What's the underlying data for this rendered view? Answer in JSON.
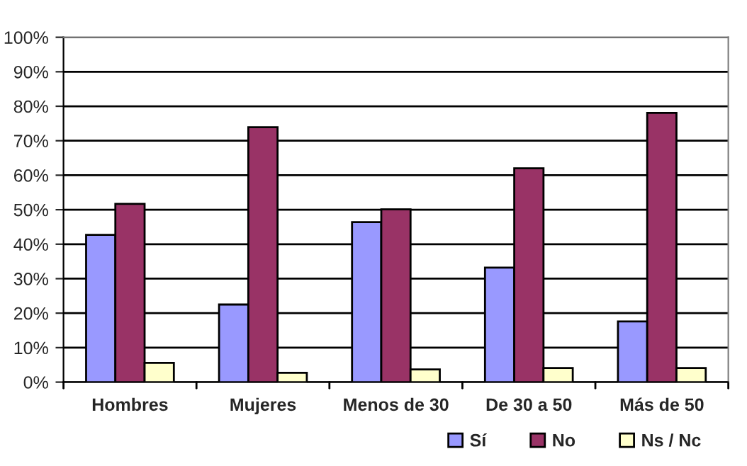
{
  "chart_data": {
    "type": "bar",
    "categories": [
      "Hombres",
      "Mujeres",
      "Menos de 30",
      "De 30 a 50",
      "Más de 50"
    ],
    "series": [
      {
        "name": "Sí",
        "color": "#9999ff",
        "values": [
          42.7,
          22.5,
          46.4,
          33.2,
          17.6
        ]
      },
      {
        "name": "No",
        "color": "#993366",
        "values": [
          51.7,
          73.9,
          50.1,
          62.0,
          78.1
        ]
      },
      {
        "name": "Ns / Nc",
        "color": "#ffffcc",
        "values": [
          5.6,
          2.7,
          3.7,
          4.1,
          4.1
        ]
      }
    ],
    "ylim": [
      0,
      100
    ],
    "yticks": [
      {
        "value": 0,
        "label": "0%"
      },
      {
        "value": 10,
        "label": "10%"
      },
      {
        "value": 20,
        "label": "20%"
      },
      {
        "value": 30,
        "label": "30%"
      },
      {
        "value": 40,
        "label": "40%"
      },
      {
        "value": 50,
        "label": "50%"
      },
      {
        "value": 60,
        "label": "60%"
      },
      {
        "value": 70,
        "label": "70%"
      },
      {
        "value": 80,
        "label": "80%"
      },
      {
        "value": 90,
        "label": "90%"
      },
      {
        "value": 100,
        "label": "100%"
      }
    ],
    "grid": "y",
    "legend": "bottom right"
  }
}
